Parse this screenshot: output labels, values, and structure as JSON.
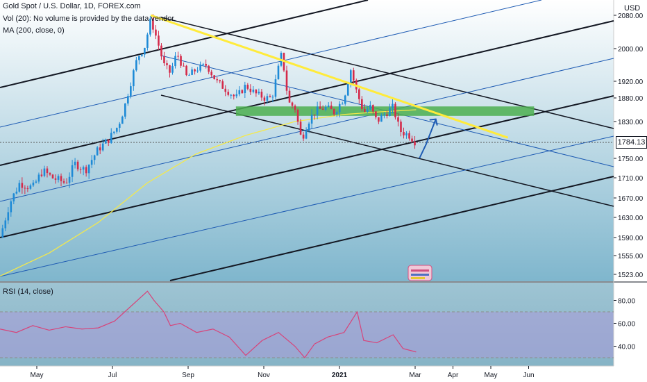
{
  "chart_data": [
    {
      "type": "candlestick",
      "title": "Gold Spot / U.S. Dollar, 1D, FOREX.com",
      "indicators": [
        "Vol (20): No volume is provided by the data vendor.",
        "MA (200, close, 0)"
      ],
      "currency": "USD",
      "y_ticks": [
        "2080.00",
        "2000.00",
        "1920.00",
        "1880.00",
        "1830.00",
        "1784.13",
        "1750.00",
        "1710.00",
        "1670.00",
        "1630.00",
        "1590.00",
        "1555.00",
        "1523.00"
      ],
      "y_tick_values": [
        2080,
        2000,
        1920,
        1880,
        1830,
        1750,
        1710,
        1670,
        1630,
        1590,
        1555,
        1523
      ],
      "last_price": "1784.13",
      "x_ticks": [
        "May",
        "Jul",
        "Sep",
        "Nov",
        "2021",
        "Mar",
        "Apr",
        "May",
        "Jun"
      ],
      "x_tick_months": [
        1,
        3,
        5,
        7,
        9,
        11,
        12,
        13,
        14
      ],
      "price_path": [
        [
          0,
          1590
        ],
        [
          0.3,
          1660
        ],
        [
          0.6,
          1700
        ],
        [
          1.0,
          1690
        ],
        [
          1.3,
          1725
        ],
        [
          1.6,
          1710
        ],
        [
          2.0,
          1700
        ],
        [
          2.3,
          1740
        ],
        [
          2.6,
          1725
        ],
        [
          3.0,
          1770
        ],
        [
          3.3,
          1790
        ],
        [
          3.6,
          1820
        ],
        [
          3.8,
          1860
        ],
        [
          4.0,
          1920
        ],
        [
          4.2,
          1980
        ],
        [
          4.4,
          2000
        ],
        [
          4.6,
          2070
        ],
        [
          4.8,
          2020
        ],
        [
          5.0,
          1960
        ],
        [
          5.2,
          1940
        ],
        [
          5.4,
          1990
        ],
        [
          5.7,
          1930
        ],
        [
          6.0,
          1950
        ],
        [
          6.3,
          1960
        ],
        [
          6.6,
          1920
        ],
        [
          6.9,
          1900
        ],
        [
          7.2,
          1880
        ],
        [
          7.5,
          1910
        ],
        [
          7.8,
          1890
        ],
        [
          8.1,
          1880
        ],
        [
          8.3,
          1880
        ],
        [
          8.6,
          1990
        ],
        [
          8.8,
          1870
        ],
        [
          9.0,
          1860
        ],
        [
          9.2,
          1790
        ],
        [
          9.4,
          1830
        ],
        [
          9.6,
          1850
        ],
        [
          9.9,
          1860
        ],
        [
          10.2,
          1850
        ],
        [
          10.5,
          1880
        ],
        [
          10.7,
          1950
        ],
        [
          10.9,
          1890
        ],
        [
          11.1,
          1850
        ],
        [
          11.3,
          1860
        ],
        [
          11.5,
          1830
        ],
        [
          11.8,
          1850
        ],
        [
          12.0,
          1860
        ],
        [
          12.2,
          1810
        ],
        [
          12.5,
          1800
        ],
        [
          12.7,
          1784
        ]
      ],
      "ma_path": [
        [
          0,
          1520
        ],
        [
          1.5,
          1560
        ],
        [
          3.0,
          1620
        ],
        [
          4.5,
          1700
        ],
        [
          6.0,
          1760
        ],
        [
          7.5,
          1800
        ],
        [
          9.0,
          1830
        ],
        [
          10.5,
          1845
        ],
        [
          11.5,
          1850
        ],
        [
          12.7,
          1855
        ]
      ],
      "trend_lines": [
        {
          "name": "yellow-resistance",
          "color": "#ffeb3b",
          "points": [
            [
              4.6,
              2080
            ],
            [
              15.5,
              1795
            ]
          ]
        },
        {
          "name": "projected-path",
          "color": "#1e5bb3",
          "points": [
            [
              12.8,
              1750
            ],
            [
              13.0,
              1780
            ],
            [
              13.3,
              1835
            ]
          ]
        }
      ],
      "support_zone": {
        "color": "#4caf50",
        "range": [
          1842,
          1862
        ],
        "months": [
          7.2,
          16.3
        ]
      }
    },
    {
      "type": "line",
      "title": "RSI (14, close)",
      "y_ticks": [
        "80.00",
        "60.00",
        "40.00"
      ],
      "y_tick_values": [
        80,
        60,
        40
      ],
      "band": [
        30,
        70
      ],
      "values": [
        [
          0,
          55
        ],
        [
          0.5,
          52
        ],
        [
          1.0,
          58
        ],
        [
          1.5,
          54
        ],
        [
          2.0,
          57
        ],
        [
          2.5,
          55
        ],
        [
          3.0,
          56
        ],
        [
          3.5,
          62
        ],
        [
          4.0,
          75
        ],
        [
          4.5,
          88
        ],
        [
          4.7,
          80
        ],
        [
          5.0,
          70
        ],
        [
          5.2,
          58
        ],
        [
          5.5,
          60
        ],
        [
          6.0,
          52
        ],
        [
          6.5,
          55
        ],
        [
          7.0,
          48
        ],
        [
          7.5,
          32
        ],
        [
          8.0,
          45
        ],
        [
          8.5,
          52
        ],
        [
          9.0,
          40
        ],
        [
          9.3,
          30
        ],
        [
          9.6,
          42
        ],
        [
          10.0,
          48
        ],
        [
          10.5,
          52
        ],
        [
          10.9,
          70
        ],
        [
          11.1,
          45
        ],
        [
          11.5,
          43
        ],
        [
          12.0,
          50
        ],
        [
          12.3,
          38
        ],
        [
          12.7,
          35
        ]
      ]
    }
  ]
}
